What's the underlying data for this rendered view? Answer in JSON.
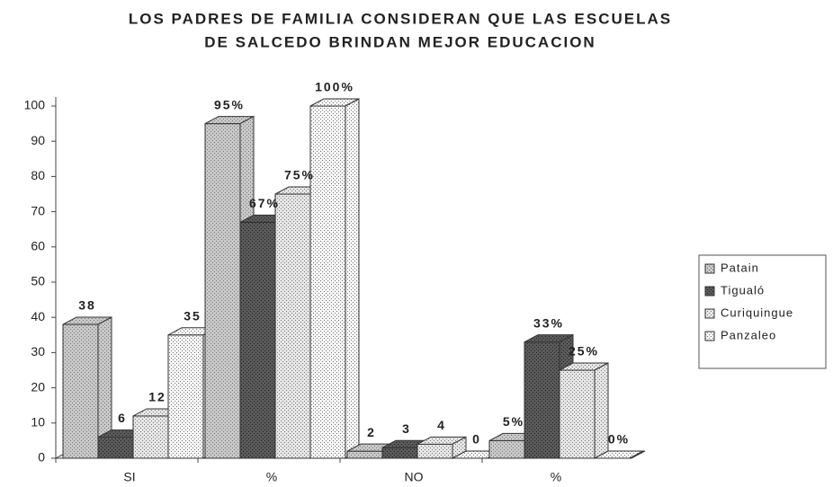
{
  "chart_data": {
    "type": "bar3d",
    "title": [
      "LOS PADRES DE FAMILIA CONSIDERAN QUE LAS ESCUELAS",
      "DE SALCEDO BRINDAN MEJOR EDUCACION"
    ],
    "categories": [
      "SI",
      "%",
      "NO",
      "%"
    ],
    "series": [
      {
        "name": "Patain",
        "color": "#c8c8c8",
        "values": [
          38,
          95,
          2,
          5
        ],
        "value_labels": [
          "38",
          "95%",
          "2",
          "5%"
        ]
      },
      {
        "name": "Tigualó",
        "color": "#5a5a5a",
        "values": [
          6,
          67,
          3,
          33
        ],
        "value_labels": [
          "6",
          "67%",
          "3",
          "33%"
        ]
      },
      {
        "name": "Curiquingue",
        "color": "#e6e6e6",
        "values": [
          12,
          75,
          4,
          25
        ],
        "value_labels": [
          "12",
          "75%",
          "4",
          "25%"
        ]
      },
      {
        "name": "Panzaleo",
        "color": "#f6f6f6",
        "values": [
          35,
          100,
          0,
          0
        ],
        "value_labels": [
          "35",
          "100%",
          "0",
          "0%"
        ]
      }
    ],
    "ylim": [
      0,
      100
    ],
    "yticks": [
      0,
      10,
      20,
      30,
      40,
      50,
      60,
      70,
      80,
      90,
      100
    ],
    "legend": "right"
  }
}
